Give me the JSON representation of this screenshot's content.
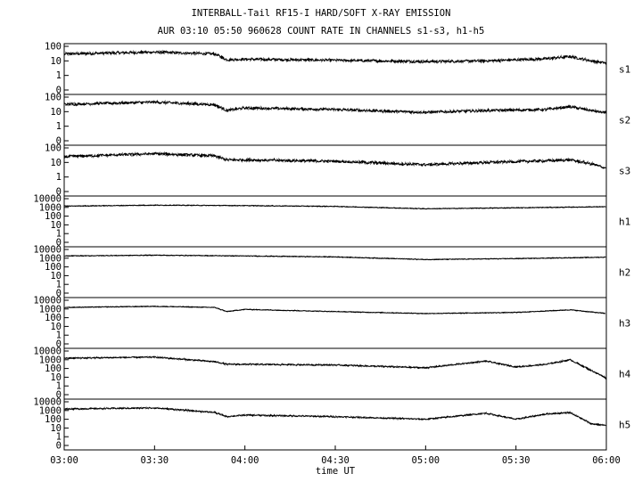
{
  "chart_data": {
    "type": "line",
    "title": "INTERBALL-Tail RF15-I HARD/SOFT X-RAY EMISSION",
    "subtitle": "AUR 03:10 05:50 960628  COUNT RATE IN CHANNELS s1-s3, h1-h5",
    "xlabel": "time UT",
    "x_ticks": [
      "03:00",
      "03:30",
      "04:00",
      "04:30",
      "05:00",
      "05:30",
      "06:00"
    ],
    "x_range": [
      "03:00",
      "06:00"
    ],
    "y_scale": "log",
    "grid": false,
    "panels": [
      {
        "name": "s1",
        "y_ticks": [
          "100",
          "10",
          "1",
          "0"
        ],
        "values": [
          [
            "03:00",
            30
          ],
          [
            "03:30",
            40
          ],
          [
            "03:50",
            30
          ],
          [
            "03:54",
            12
          ],
          [
            "04:00",
            13
          ],
          [
            "04:30",
            11
          ],
          [
            "05:00",
            9
          ],
          [
            "05:20",
            10
          ],
          [
            "05:40",
            14
          ],
          [
            "05:48",
            20
          ],
          [
            "05:55",
            10
          ],
          [
            "06:00",
            7
          ]
        ]
      },
      {
        "name": "s2",
        "y_ticks": [
          "100",
          "10",
          "1",
          "0"
        ],
        "values": [
          [
            "03:00",
            32
          ],
          [
            "03:30",
            45
          ],
          [
            "03:50",
            30
          ],
          [
            "03:54",
            12
          ],
          [
            "04:00",
            18
          ],
          [
            "04:30",
            14
          ],
          [
            "05:00",
            9
          ],
          [
            "05:20",
            12
          ],
          [
            "05:40",
            14
          ],
          [
            "05:48",
            22
          ],
          [
            "05:55",
            12
          ],
          [
            "06:00",
            8
          ]
        ]
      },
      {
        "name": "s3",
        "y_ticks": [
          "100",
          "10",
          "1",
          "0"
        ],
        "values": [
          [
            "03:00",
            25
          ],
          [
            "03:30",
            40
          ],
          [
            "03:50",
            28
          ],
          [
            "03:54",
            15
          ],
          [
            "04:00",
            15
          ],
          [
            "04:30",
            12
          ],
          [
            "05:00",
            7
          ],
          [
            "05:20",
            10
          ],
          [
            "05:40",
            13
          ],
          [
            "05:48",
            15
          ],
          [
            "05:55",
            8
          ],
          [
            "06:00",
            4
          ]
        ]
      },
      {
        "name": "h1",
        "y_ticks": [
          "10000",
          "1000",
          "100",
          "10",
          "1",
          "0"
        ],
        "values": [
          [
            "03:00",
            1400
          ],
          [
            "03:30",
            1800
          ],
          [
            "04:00",
            1600
          ],
          [
            "04:30",
            1300
          ],
          [
            "05:00",
            700
          ],
          [
            "05:30",
            900
          ],
          [
            "06:00",
            1200
          ]
        ]
      },
      {
        "name": "h2",
        "y_ticks": [
          "10000",
          "1000",
          "100",
          "10",
          "1",
          "0"
        ],
        "values": [
          [
            "03:00",
            1800
          ],
          [
            "03:30",
            2200
          ],
          [
            "04:00",
            1800
          ],
          [
            "04:30",
            1400
          ],
          [
            "05:00",
            700
          ],
          [
            "05:30",
            900
          ],
          [
            "06:00",
            1300
          ]
        ]
      },
      {
        "name": "h3",
        "y_ticks": [
          "10000",
          "1000",
          "100",
          "10",
          "1",
          "0"
        ],
        "values": [
          [
            "03:00",
            1500
          ],
          [
            "03:30",
            2000
          ],
          [
            "03:50",
            1500
          ],
          [
            "03:54",
            500
          ],
          [
            "04:00",
            900
          ],
          [
            "04:30",
            500
          ],
          [
            "05:00",
            300
          ],
          [
            "05:30",
            400
          ],
          [
            "05:48",
            800
          ],
          [
            "06:00",
            300
          ]
        ]
      },
      {
        "name": "h4",
        "y_ticks": [
          "10000",
          "1000",
          "100",
          "10",
          "1",
          "0"
        ],
        "values": [
          [
            "03:00",
            1500
          ],
          [
            "03:30",
            2000
          ],
          [
            "03:50",
            600
          ],
          [
            "03:54",
            300
          ],
          [
            "04:00",
            300
          ],
          [
            "04:30",
            250
          ],
          [
            "05:00",
            120
          ],
          [
            "05:20",
            700
          ],
          [
            "05:30",
            150
          ],
          [
            "05:40",
            300
          ],
          [
            "05:48",
            1000
          ],
          [
            "05:55",
            60
          ],
          [
            "06:00",
            8
          ]
        ]
      },
      {
        "name": "h5",
        "y_ticks": [
          "10000",
          "1000",
          "100",
          "10",
          "1",
          "0"
        ],
        "values": [
          [
            "03:00",
            1500
          ],
          [
            "03:30",
            2000
          ],
          [
            "03:50",
            600
          ],
          [
            "03:54",
            200
          ],
          [
            "04:00",
            300
          ],
          [
            "04:30",
            200
          ],
          [
            "05:00",
            100
          ],
          [
            "05:20",
            500
          ],
          [
            "05:30",
            100
          ],
          [
            "05:40",
            400
          ],
          [
            "05:48",
            600
          ],
          [
            "05:55",
            30
          ],
          [
            "06:00",
            20
          ]
        ]
      }
    ]
  }
}
